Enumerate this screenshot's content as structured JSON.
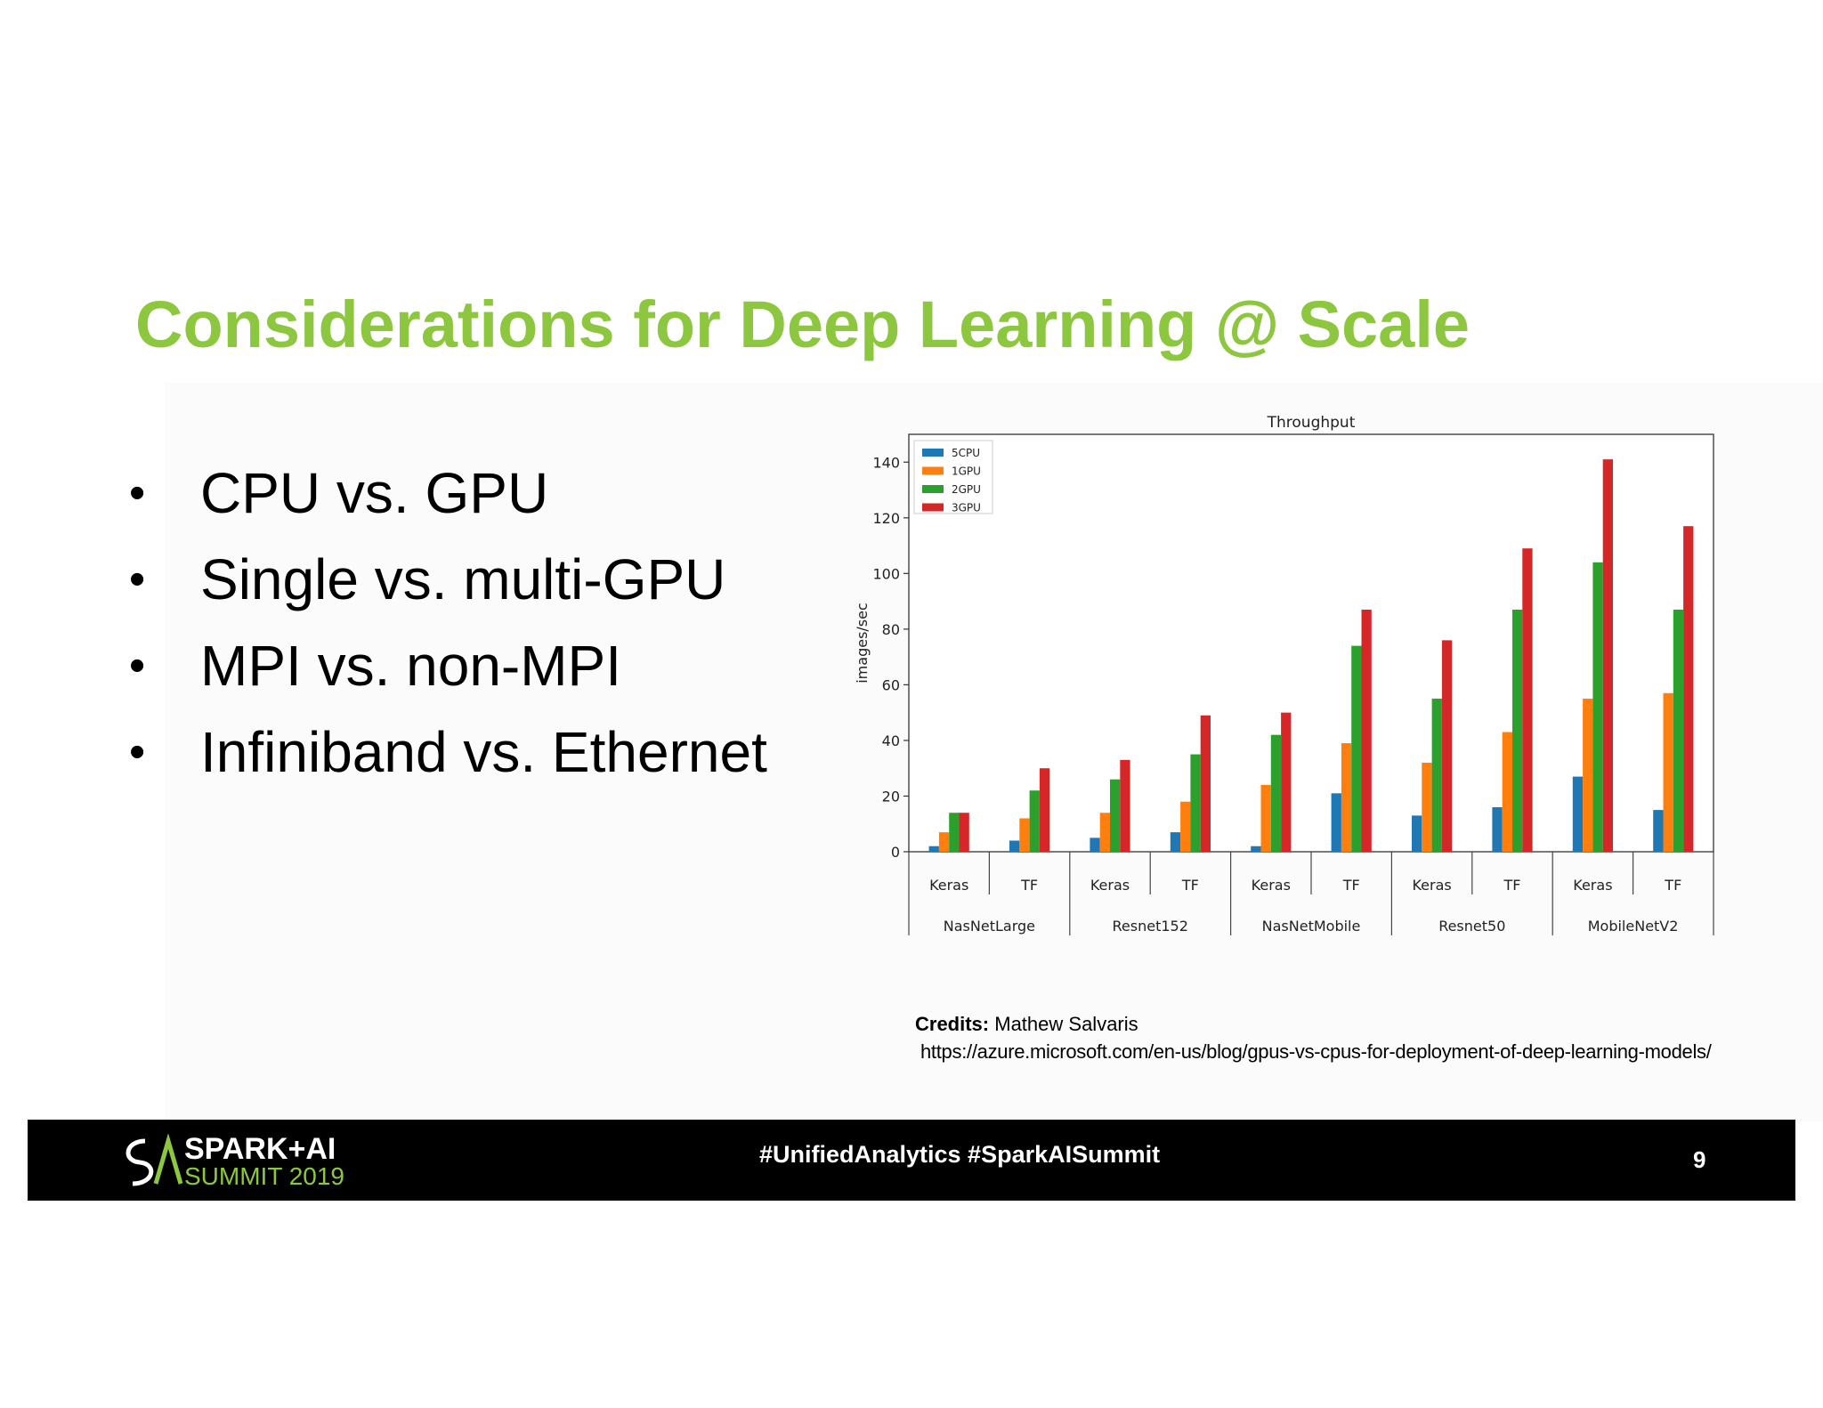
{
  "slide": {
    "title": "Considerations for Deep Learning @ Scale",
    "bullets": [
      {
        "label": "CPU vs. GPU"
      },
      {
        "label": "Single vs. multi-GPU"
      },
      {
        "label": "MPI vs. non-MPI"
      },
      {
        "label": "Infiniband vs. Ethernet"
      }
    ],
    "bullet_glyph": "•"
  },
  "credits": {
    "label": "Credits:",
    "author": "Mathew Salvaris",
    "url": "https://azure.microsoft.com/en-us/blog/gpus-vs-cpus-for-deployment-of-deep-learning-models/"
  },
  "footer": {
    "logo_line1": "SPARK+AI",
    "logo_line2": "SUMMIT 2019",
    "hashtags": "#UnifiedAnalytics #SparkAISummit",
    "page_number": "9"
  },
  "colors": {
    "title": "#8dc63f",
    "footer_bg": "#000000",
    "series": [
      "#1f77b4",
      "#ff7f0e",
      "#2ca02c",
      "#d62728"
    ]
  },
  "chart_data": {
    "type": "bar",
    "title": "Throughput",
    "xlabel": "",
    "ylabel": "images/sec",
    "ylim": [
      0,
      150
    ],
    "yticks": [
      0,
      20,
      40,
      60,
      80,
      100,
      120,
      140
    ],
    "grid": false,
    "legend_position": "top-left",
    "categories": [
      "Keras",
      "TF",
      "Keras",
      "TF",
      "Keras",
      "TF",
      "Keras",
      "TF",
      "Keras",
      "TF"
    ],
    "groups": [
      "NasNetLarge",
      "Resnet152",
      "NasNetMobile",
      "Resnet50",
      "MobileNetV2"
    ],
    "series": [
      {
        "name": "5CPU",
        "values": [
          2,
          4,
          5,
          7,
          2,
          21,
          13,
          16,
          27,
          15
        ]
      },
      {
        "name": "1GPU",
        "values": [
          7,
          12,
          14,
          18,
          24,
          39,
          32,
          43,
          55,
          57
        ]
      },
      {
        "name": "2GPU",
        "values": [
          14,
          22,
          26,
          35,
          42,
          74,
          55,
          87,
          104,
          87
        ]
      },
      {
        "name": "3GPU",
        "values": [
          14,
          30,
          33,
          49,
          50,
          87,
          76,
          109,
          141,
          117
        ]
      }
    ]
  }
}
